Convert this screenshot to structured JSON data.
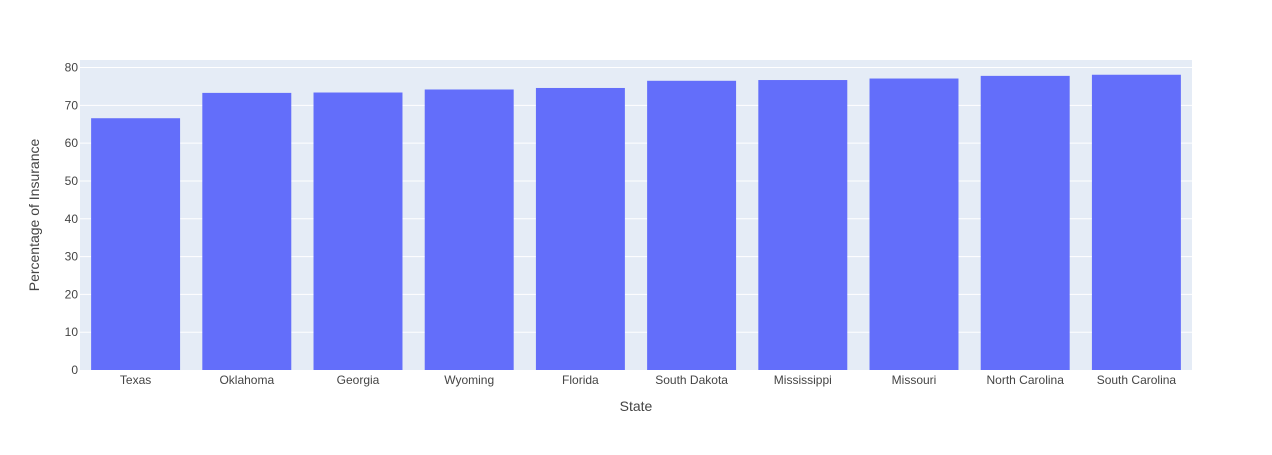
{
  "chart_data": {
    "type": "bar",
    "categories": [
      "Texas",
      "Oklahoma",
      "Georgia",
      "Wyoming",
      "Florida",
      "South Dakota",
      "Mississippi",
      "Missouri",
      "North Carolina",
      "South Carolina"
    ],
    "values": [
      66.6,
      73.3,
      73.4,
      74.2,
      74.6,
      76.5,
      76.7,
      77.1,
      77.8,
      78.1
    ],
    "title": "",
    "xlabel": "State",
    "ylabel": "Percentage of Insurance",
    "ylim": [
      0,
      82
    ],
    "yticks": [
      0,
      10,
      20,
      30,
      40,
      50,
      60,
      70,
      80
    ],
    "grid": true,
    "legend": "none"
  },
  "colors": {
    "bar": "#636efa",
    "plot_background": "#e5ecf6",
    "grid": "#ffffff"
  }
}
